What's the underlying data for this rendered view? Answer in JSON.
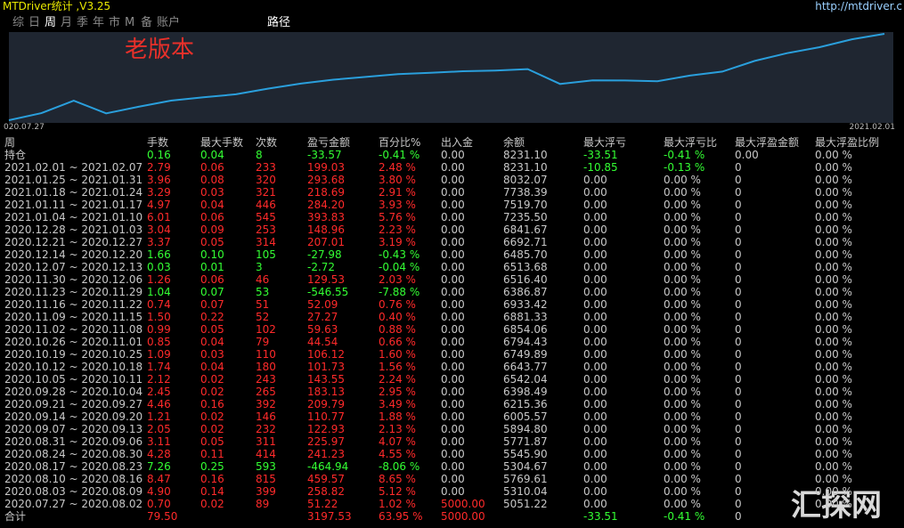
{
  "header": {
    "title": "MTDriver统计 ,V3.25",
    "url": "http://mtdriver.c"
  },
  "tabs": [
    "综",
    "日",
    "周",
    "月",
    "季",
    "年",
    "市",
    "M",
    "备",
    "账户"
  ],
  "active_tab": 2,
  "path_button": "路径",
  "chart": {
    "type": "line",
    "annotation": "老版本",
    "x_start_label": "020.07.27",
    "x_end_label": "2021.02.01",
    "color": "#2a9fdc"
  },
  "table": {
    "columns": [
      "周",
      "手数",
      "最大手数",
      "次数",
      "盈亏金额",
      "百分比%",
      "出入金",
      "余额",
      "最大浮亏",
      "最大浮亏比",
      "最大浮盈金额",
      "最大浮盈比例"
    ],
    "open_row": [
      "持仓",
      "0.16",
      "0.04",
      "8",
      "-33.57",
      "-0.41 %",
      "0.00",
      "8231.10",
      "-33.51",
      "-0.41 %",
      "0.00",
      "0.00 %"
    ],
    "rows": [
      [
        "2021.02.01 ~ 2021.02.07",
        "2.79",
        "0.06",
        "233",
        "199.03",
        "2.48 %",
        "0.00",
        "8231.10",
        "-10.85",
        "-0.13 %",
        "0",
        "0.00 %"
      ],
      [
        "2021.01.25 ~ 2021.01.31",
        "3.96",
        "0.08",
        "320",
        "293.68",
        "3.80 %",
        "0.00",
        "8032.07",
        "0.00",
        "0.00 %",
        "0",
        "0.00 %"
      ],
      [
        "2021.01.18 ~ 2021.01.24",
        "3.29",
        "0.03",
        "321",
        "218.69",
        "2.91 %",
        "0.00",
        "7738.39",
        "0.00",
        "0.00 %",
        "0",
        "0.00 %"
      ],
      [
        "2021.01.11 ~ 2021.01.17",
        "4.97",
        "0.04",
        "446",
        "284.20",
        "3.93 %",
        "0.00",
        "7519.70",
        "0.00",
        "0.00 %",
        "0",
        "0.00 %"
      ],
      [
        "2021.01.04 ~ 2021.01.10",
        "6.01",
        "0.06",
        "545",
        "393.83",
        "5.76 %",
        "0.00",
        "7235.50",
        "0.00",
        "0.00 %",
        "0",
        "0.00 %"
      ],
      [
        "2020.12.28 ~ 2021.01.03",
        "3.04",
        "0.09",
        "253",
        "148.96",
        "2.23 %",
        "0.00",
        "6841.67",
        "0.00",
        "0.00 %",
        "0",
        "0.00 %"
      ],
      [
        "2020.12.21 ~ 2020.12.27",
        "3.37",
        "0.05",
        "314",
        "207.01",
        "3.19 %",
        "0.00",
        "6692.71",
        "0.00",
        "0.00 %",
        "0",
        "0.00 %"
      ],
      [
        "2020.12.14 ~ 2020.12.20",
        "1.66",
        "0.10",
        "105",
        "-27.98",
        "-0.43 %",
        "0.00",
        "6485.70",
        "0.00",
        "0.00 %",
        "0",
        "0.00 %"
      ],
      [
        "2020.12.07 ~ 2020.12.13",
        "0.03",
        "0.01",
        "3",
        "-2.72",
        "-0.04 %",
        "0.00",
        "6513.68",
        "0.00",
        "0.00 %",
        "0",
        "0.00 %"
      ],
      [
        "2020.11.30 ~ 2020.12.06",
        "1.26",
        "0.06",
        "46",
        "129.53",
        "2.03 %",
        "0.00",
        "6516.40",
        "0.00",
        "0.00 %",
        "0",
        "0.00 %"
      ],
      [
        "2020.11.23 ~ 2020.11.29",
        "1.04",
        "0.07",
        "53",
        "-546.55",
        "-7.88 %",
        "0.00",
        "6386.87",
        "0.00",
        "0.00 %",
        "0",
        "0.00 %"
      ],
      [
        "2020.11.16 ~ 2020.11.22",
        "0.74",
        "0.07",
        "51",
        "52.09",
        "0.76 %",
        "0.00",
        "6933.42",
        "0.00",
        "0.00 %",
        "0",
        "0.00 %"
      ],
      [
        "2020.11.09 ~ 2020.11.15",
        "1.50",
        "0.22",
        "52",
        "27.27",
        "0.40 %",
        "0.00",
        "6881.33",
        "0.00",
        "0.00 %",
        "0",
        "0.00 %"
      ],
      [
        "2020.11.02 ~ 2020.11.08",
        "0.99",
        "0.05",
        "102",
        "59.63",
        "0.88 %",
        "0.00",
        "6854.06",
        "0.00",
        "0.00 %",
        "0",
        "0.00 %"
      ],
      [
        "2020.10.26 ~ 2020.11.01",
        "0.85",
        "0.04",
        "79",
        "44.54",
        "0.66 %",
        "0.00",
        "6794.43",
        "0.00",
        "0.00 %",
        "0",
        "0.00 %"
      ],
      [
        "2020.10.19 ~ 2020.10.25",
        "1.09",
        "0.03",
        "110",
        "106.12",
        "1.60 %",
        "0.00",
        "6749.89",
        "0.00",
        "0.00 %",
        "0",
        "0.00 %"
      ],
      [
        "2020.10.12 ~ 2020.10.18",
        "1.74",
        "0.04",
        "180",
        "101.73",
        "1.56 %",
        "0.00",
        "6643.77",
        "0.00",
        "0.00 %",
        "0",
        "0.00 %"
      ],
      [
        "2020.10.05 ~ 2020.10.11",
        "2.12",
        "0.02",
        "243",
        "143.55",
        "2.24 %",
        "0.00",
        "6542.04",
        "0.00",
        "0.00 %",
        "0",
        "0.00 %"
      ],
      [
        "2020.09.28 ~ 2020.10.04",
        "2.45",
        "0.02",
        "265",
        "183.13",
        "2.95 %",
        "0.00",
        "6398.49",
        "0.00",
        "0.00 %",
        "0",
        "0.00 %"
      ],
      [
        "2020.09.21 ~ 2020.09.27",
        "4.46",
        "0.16",
        "392",
        "209.79",
        "3.49 %",
        "0.00",
        "6215.36",
        "0.00",
        "0.00 %",
        "0",
        "0.00 %"
      ],
      [
        "2020.09.14 ~ 2020.09.20",
        "1.21",
        "0.02",
        "146",
        "110.77",
        "1.88 %",
        "0.00",
        "6005.57",
        "0.00",
        "0.00 %",
        "0",
        "0.00 %"
      ],
      [
        "2020.09.07 ~ 2020.09.13",
        "2.05",
        "0.02",
        "232",
        "122.93",
        "2.13 %",
        "0.00",
        "5894.80",
        "0.00",
        "0.00 %",
        "0",
        "0.00 %"
      ],
      [
        "2020.08.31 ~ 2020.09.06",
        "3.11",
        "0.05",
        "311",
        "225.97",
        "4.07 %",
        "0.00",
        "5771.87",
        "0.00",
        "0.00 %",
        "0",
        "0.00 %"
      ],
      [
        "2020.08.24 ~ 2020.08.30",
        "4.28",
        "0.11",
        "414",
        "241.23",
        "4.55 %",
        "0.00",
        "5545.90",
        "0.00",
        "0.00 %",
        "0",
        "0.00 %"
      ],
      [
        "2020.08.17 ~ 2020.08.23",
        "7.26",
        "0.25",
        "593",
        "-464.94",
        "-8.06 %",
        "0.00",
        "5304.67",
        "0.00",
        "0.00 %",
        "0",
        "0.00 %"
      ],
      [
        "2020.08.10 ~ 2020.08.16",
        "8.47",
        "0.16",
        "815",
        "459.57",
        "8.65 %",
        "0.00",
        "5769.61",
        "0.00",
        "0.00 %",
        "0",
        "0.00 %"
      ],
      [
        "2020.08.03 ~ 2020.08.09",
        "4.90",
        "0.14",
        "399",
        "258.82",
        "5.12 %",
        "0.00",
        "5310.04",
        "0.00",
        "0.00 %",
        "0",
        "0.00 %"
      ],
      [
        "2020.07.27 ~ 2020.08.02",
        "0.70",
        "0.02",
        "89",
        "51.22",
        "1.02 %",
        "5000.00",
        "5051.22",
        "0.00",
        "0.00 %",
        "0",
        "0.00 %"
      ]
    ],
    "total": {
      "label": "合计",
      "lots": "79.50",
      "pnl": "3197.53",
      "pct": "63.95 %",
      "in_out": "5000.00",
      "max_float_loss": "-33.51",
      "max_float_loss_pct": "-0.41 %",
      "max_float_profit": "0"
    }
  },
  "watermark": "汇探网"
}
